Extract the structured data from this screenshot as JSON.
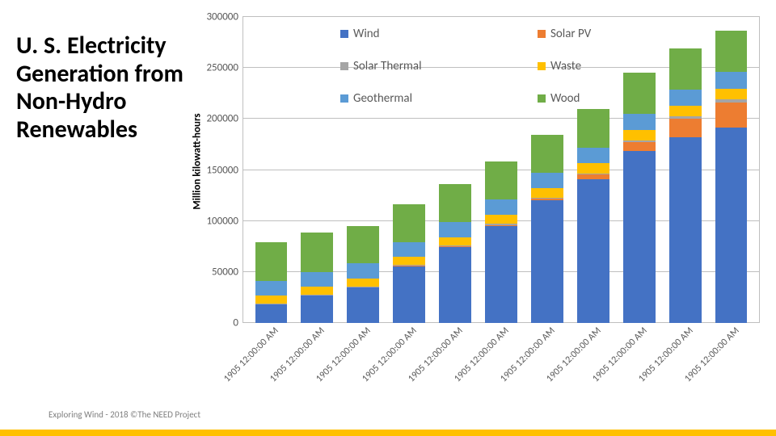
{
  "title": "U. S. Electricity Generation from Non-Hydro Renewables",
  "ylabel": "Million kilowatt-hours",
  "footer": "Exploring Wind - 2018  ©The NEED Project",
  "chart": {
    "type": "stacked-bar",
    "ylim": [
      0,
      300000
    ],
    "ytick_step": 50000,
    "yticks": [
      "0",
      "50000",
      "100000",
      "150000",
      "200000",
      "250000",
      "300000"
    ],
    "grid_color": "#bfbfbf",
    "background_color": "#ffffff",
    "bar_width": 0.7,
    "series": [
      "Wind",
      "Solar PV",
      "Solar Thermal",
      "Waste",
      "Geothermal",
      "Wood"
    ],
    "series_colors": {
      "Wind": "#4472c4",
      "Solar PV": "#ed7d31",
      "Solar Thermal": "#a5a5a5",
      "Waste": "#ffc000",
      "Geothermal": "#5b9bd5",
      "Wood": "#70ad47"
    },
    "categories": [
      "1905 12:00:00 AM",
      "1905 12:00:00 AM",
      "1905 12:00:00 AM",
      "1905 12:00:00 AM",
      "1905 12:00:00 AM",
      "1905 12:00:00 AM",
      "1905 12:00:00 AM",
      "1905 12:00:00 AM",
      "1905 12:00:00 AM",
      "1905 12:00:00 AM",
      "1905 12:00:00 AM"
    ],
    "data": [
      {
        "Wind": 17800,
        "Solar PV": 500,
        "Solar Thermal": 500,
        "Waste": 8000,
        "Geothermal": 14500,
        "Wood": 38000
      },
      {
        "Wind": 26600,
        "Solar PV": 500,
        "Solar Thermal": 500,
        "Waste": 8000,
        "Geothermal": 14500,
        "Wood": 38000
      },
      {
        "Wind": 34400,
        "Solar PV": 600,
        "Solar Thermal": 600,
        "Waste": 8000,
        "Geothermal": 14500,
        "Wood": 37000
      },
      {
        "Wind": 55400,
        "Solar PV": 700,
        "Solar Thermal": 700,
        "Waste": 8000,
        "Geothermal": 14500,
        "Wood": 37000
      },
      {
        "Wind": 73900,
        "Solar PV": 800,
        "Solar Thermal": 800,
        "Waste": 8500,
        "Geothermal": 14800,
        "Wood": 37000
      },
      {
        "Wind": 94700,
        "Solar PV": 1200,
        "Solar Thermal": 900,
        "Waste": 9000,
        "Geothermal": 14800,
        "Wood": 37000
      },
      {
        "Wind": 119700,
        "Solar PV": 1800,
        "Solar Thermal": 1000,
        "Waste": 9500,
        "Geothermal": 15200,
        "Wood": 37000
      },
      {
        "Wind": 140800,
        "Solar PV": 4300,
        "Solar Thermal": 1200,
        "Waste": 9800,
        "Geothermal": 15500,
        "Wood": 38000
      },
      {
        "Wind": 167900,
        "Solar PV": 9000,
        "Solar Thermal": 1800,
        "Waste": 10000,
        "Geothermal": 15900,
        "Wood": 40000
      },
      {
        "Wind": 181700,
        "Solar PV": 17700,
        "Solar Thermal": 2500,
        "Waste": 10200,
        "Geothermal": 16000,
        "Wood": 40000
      },
      {
        "Wind": 190700,
        "Solar PV": 24900,
        "Solar Thermal": 3200,
        "Waste": 10500,
        "Geothermal": 16200,
        "Wood": 40000
      }
    ]
  }
}
